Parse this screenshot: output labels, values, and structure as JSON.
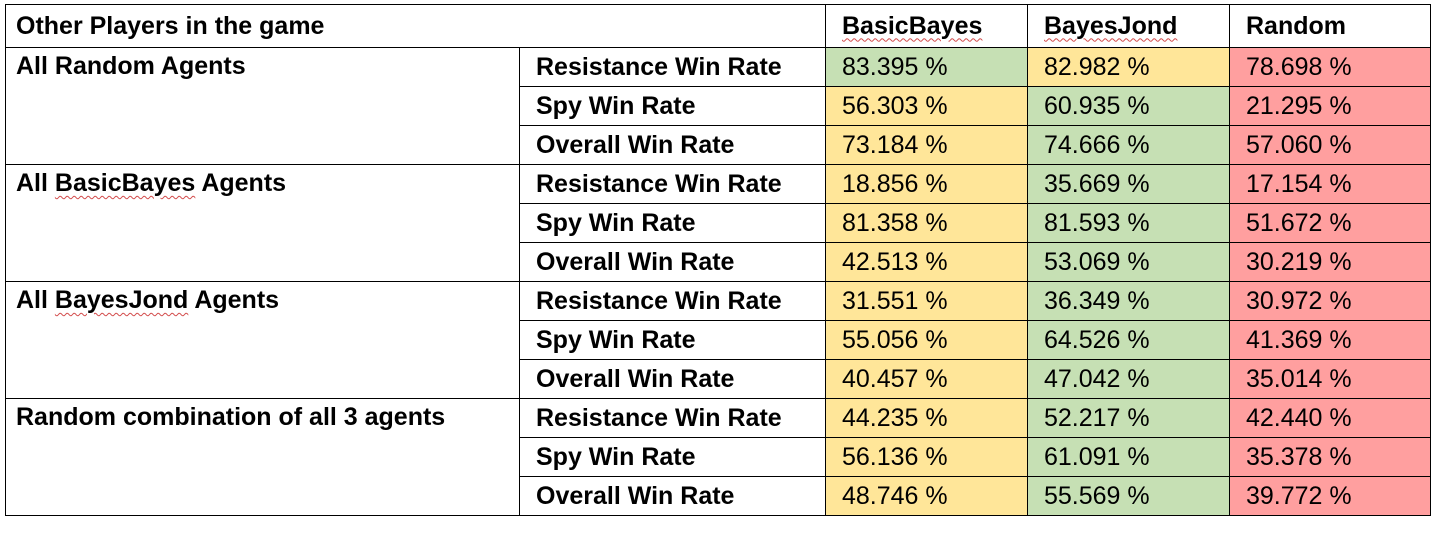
{
  "table": {
    "header_label": "Other Players in the game",
    "agents": [
      {
        "name": "BasicBayes",
        "color": "#ffe699"
      },
      {
        "name": "BayesJond",
        "color": "#c6e0b4"
      },
      {
        "name": "Random",
        "color": "#ff9f9f"
      }
    ],
    "colors": {
      "yellow": "#ffe699",
      "green": "#c6e0b4",
      "red": "#ff9f9f"
    },
    "groups": [
      {
        "label": "All Random Agents",
        "rows": [
          {
            "metric": "Resistance Win Rate",
            "values": [
              "83.395 %",
              "82.982 %",
              "78.698 %"
            ],
            "fills": [
              "green",
              "yellow",
              "red"
            ]
          },
          {
            "metric": "Spy Win Rate",
            "values": [
              "56.303 %",
              "60.935 %",
              "21.295 %"
            ],
            "fills": [
              "yellow",
              "green",
              "red"
            ]
          },
          {
            "metric": "Overall Win Rate",
            "values": [
              "73.184 %",
              "74.666 %",
              "57.060 %"
            ],
            "fills": [
              "yellow",
              "green",
              "red"
            ]
          }
        ]
      },
      {
        "label": "All BasicBayes Agents",
        "rows": [
          {
            "metric": "Resistance Win Rate",
            "values": [
              "18.856 %",
              "35.669 %",
              "17.154 %"
            ],
            "fills": [
              "yellow",
              "green",
              "red"
            ]
          },
          {
            "metric": "Spy Win Rate",
            "values": [
              "81.358 %",
              "81.593 %",
              "51.672 %"
            ],
            "fills": [
              "yellow",
              "green",
              "red"
            ]
          },
          {
            "metric": "Overall Win Rate",
            "values": [
              "42.513 %",
              "53.069 %",
              "30.219 %"
            ],
            "fills": [
              "yellow",
              "green",
              "red"
            ]
          }
        ]
      },
      {
        "label": "All BayesJond Agents",
        "rows": [
          {
            "metric": "Resistance Win Rate",
            "values": [
              "31.551 %",
              "36.349 %",
              "30.972 %"
            ],
            "fills": [
              "yellow",
              "green",
              "red"
            ]
          },
          {
            "metric": "Spy Win Rate",
            "values": [
              "55.056 %",
              "64.526 %",
              "41.369 %"
            ],
            "fills": [
              "yellow",
              "green",
              "red"
            ]
          },
          {
            "metric": "Overall Win Rate",
            "values": [
              "40.457 %",
              "47.042 %",
              "35.014 %"
            ],
            "fills": [
              "yellow",
              "green",
              "red"
            ]
          }
        ]
      },
      {
        "label": "Random combination of all 3 agents",
        "rows": [
          {
            "metric": "Resistance Win Rate",
            "values": [
              "44.235 %",
              "52.217 %",
              "42.440 %"
            ],
            "fills": [
              "yellow",
              "green",
              "red"
            ]
          },
          {
            "metric": "Spy Win Rate",
            "values": [
              "56.136 %",
              "61.091 %",
              "35.378 %"
            ],
            "fills": [
              "yellow",
              "green",
              "red"
            ]
          },
          {
            "metric": "Overall Win Rate",
            "values": [
              "48.746 %",
              "55.569 %",
              "39.772 %"
            ],
            "fills": [
              "yellow",
              "green",
              "red"
            ]
          }
        ]
      }
    ]
  }
}
